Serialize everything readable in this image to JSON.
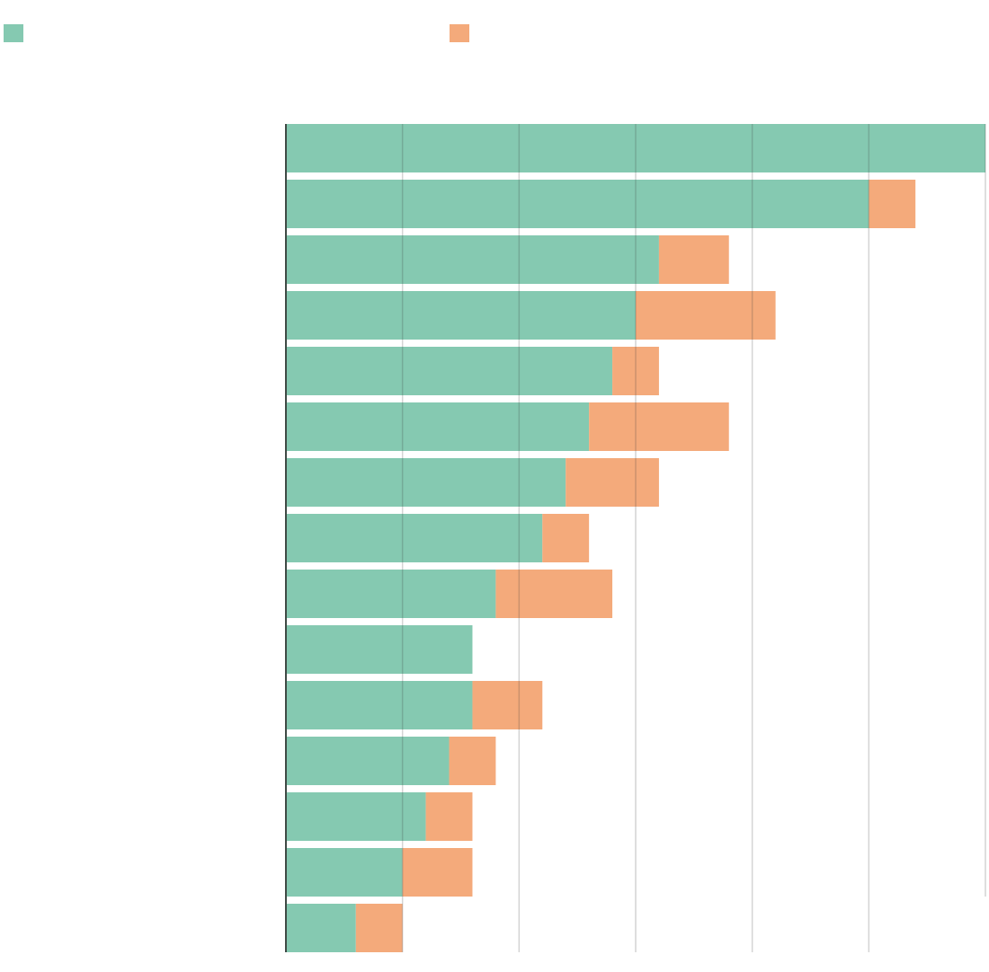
{
  "chart_data": {
    "type": "bar",
    "orientation": "horizontal",
    "stacked": true,
    "title": "",
    "xlabel": "",
    "ylabel": "",
    "xlim": [
      0,
      6
    ],
    "grid": true,
    "legend_position": "top",
    "categories": [
      "",
      "",
      "",
      "",
      "",
      "",
      "",
      "",
      "",
      "",
      "",
      "",
      "",
      "",
      ""
    ],
    "series": [
      {
        "color": "#85C9B1",
        "values": [
          6.0,
          5.0,
          3.2,
          3.0,
          2.8,
          2.6,
          2.4,
          2.2,
          1.8,
          1.6,
          1.6,
          1.4,
          1.2,
          1.0,
          0.6
        ]
      },
      {
        "color": "#F4AA7B",
        "values": [
          0.0,
          0.4,
          0.6,
          1.2,
          0.4,
          1.2,
          0.8,
          0.4,
          1.0,
          0.0,
          0.6,
          0.4,
          0.4,
          0.6,
          0.4
        ]
      }
    ]
  }
}
